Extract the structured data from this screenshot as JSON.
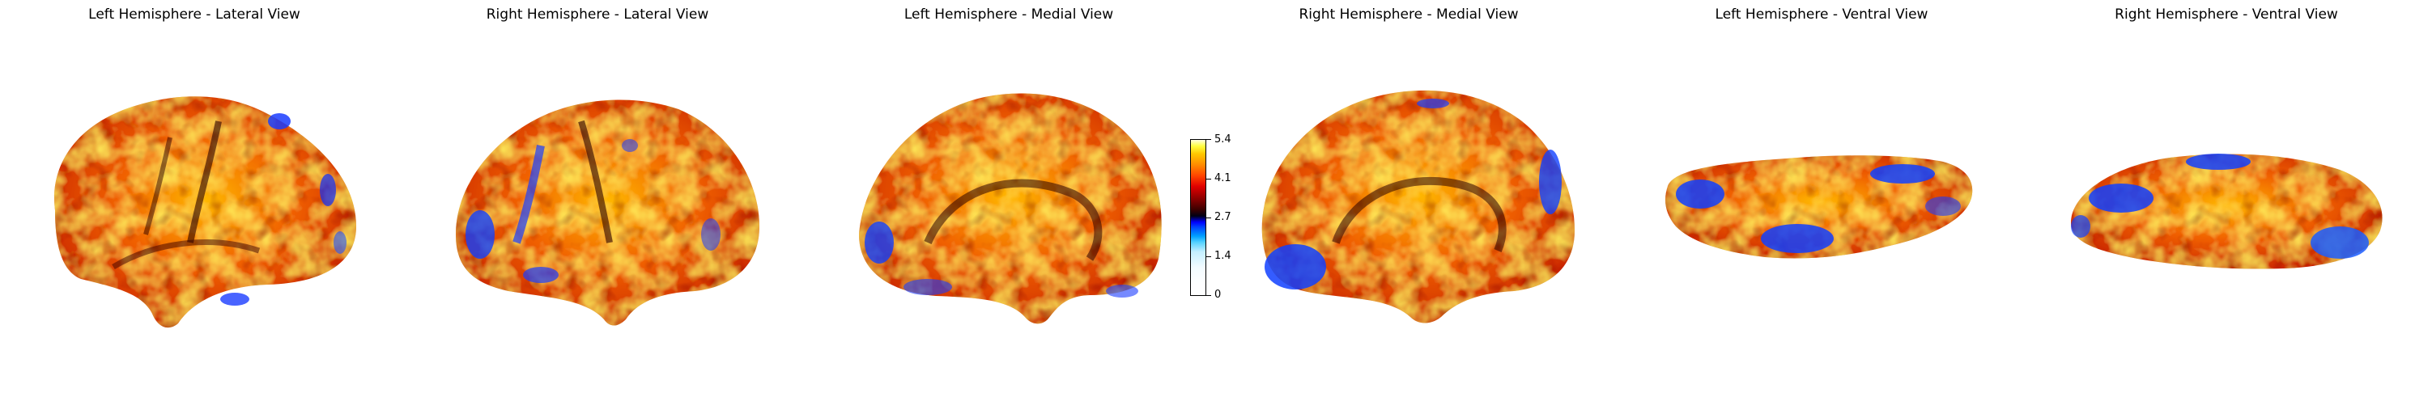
{
  "panels": [
    {
      "title": "Left Hemisphere - Lateral View",
      "icon": "brain-lateral-left-icon"
    },
    {
      "title": "Right Hemisphere - Lateral View",
      "icon": "brain-lateral-right-icon"
    },
    {
      "title": "Left Hemisphere - Medial View",
      "icon": "brain-medial-left-icon"
    },
    {
      "title": "Right Hemisphere - Medial View",
      "icon": "brain-medial-right-icon"
    },
    {
      "title": "Left Hemisphere - Ventral View",
      "icon": "brain-ventral-left-icon"
    },
    {
      "title": "Right Hemisphere - Ventral View",
      "icon": "brain-ventral-right-icon"
    }
  ],
  "colorbar": {
    "ticks": [
      "5.4",
      "4.1",
      "2.7",
      "1.4",
      "0"
    ],
    "colors": {
      "low": "#ffffff",
      "mid_blue": "#0000ff",
      "center": "#000000",
      "mid_red": "#e00000",
      "high": "#ffff40"
    }
  }
}
